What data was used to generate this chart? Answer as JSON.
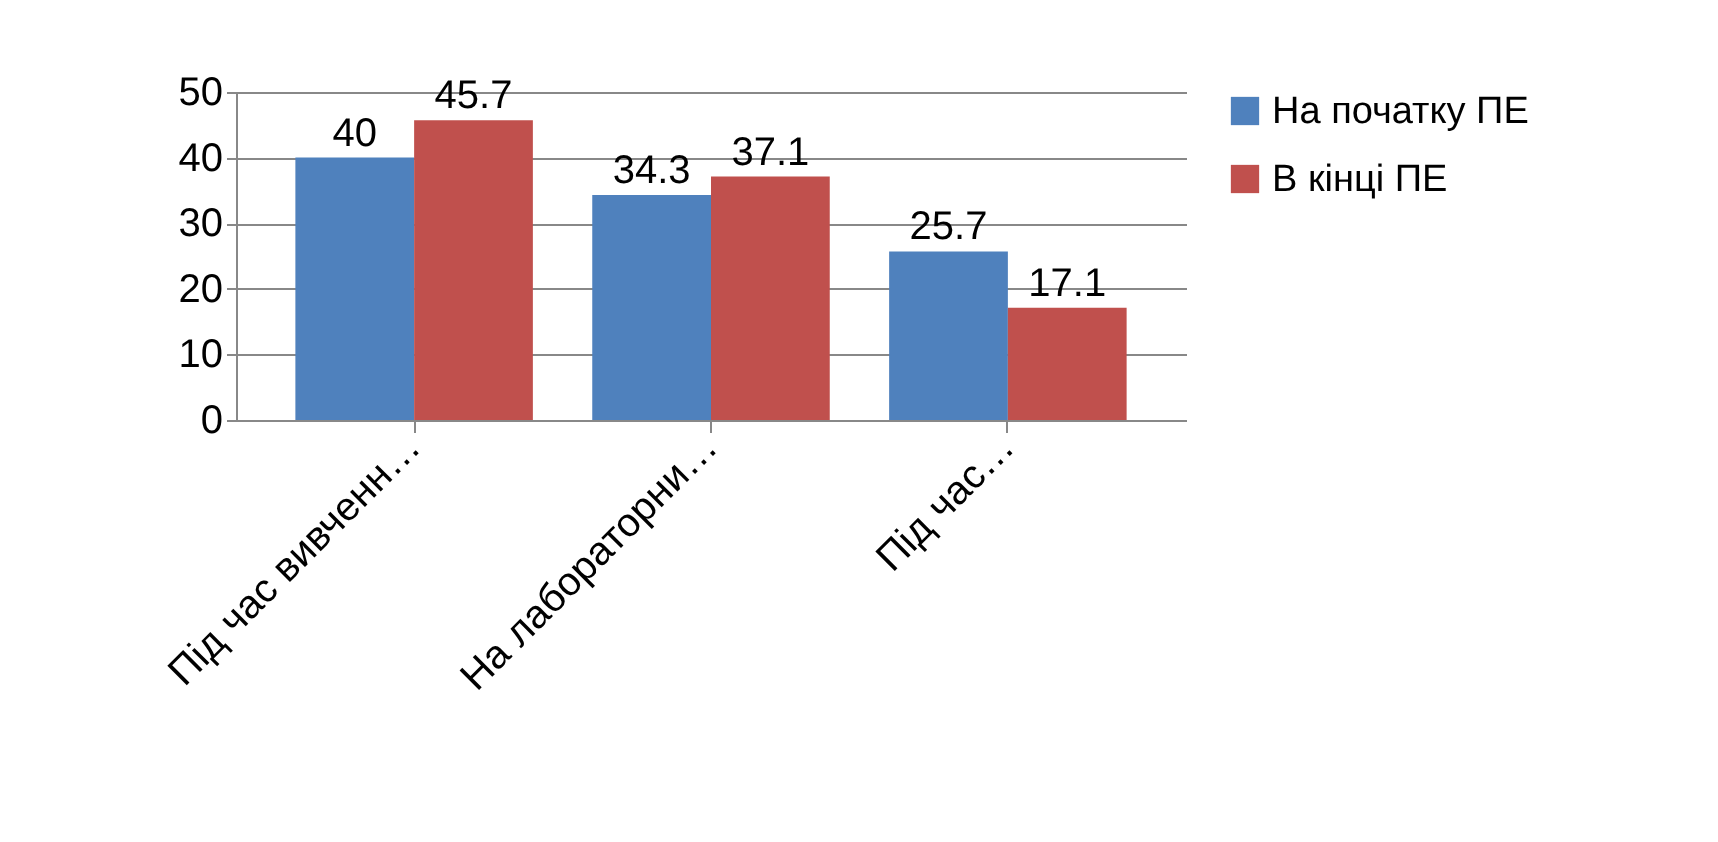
{
  "chart_data": {
    "type": "bar",
    "categories": [
      "Під час вивченн…",
      "На лабораторни…",
      "Під час…"
    ],
    "series": [
      {
        "name": "На початку ПЕ",
        "color": "#4f81bd",
        "values": [
          40,
          34.3,
          25.7
        ]
      },
      {
        "name": "В кінці ПЕ",
        "color": "#c0504d",
        "values": [
          45.7,
          37.1,
          17.1
        ]
      }
    ],
    "ylim": [
      0,
      50
    ],
    "yticks": [
      0,
      10,
      20,
      30,
      40,
      50
    ],
    "grid": "y",
    "legend": "right",
    "data_labels": true
  }
}
